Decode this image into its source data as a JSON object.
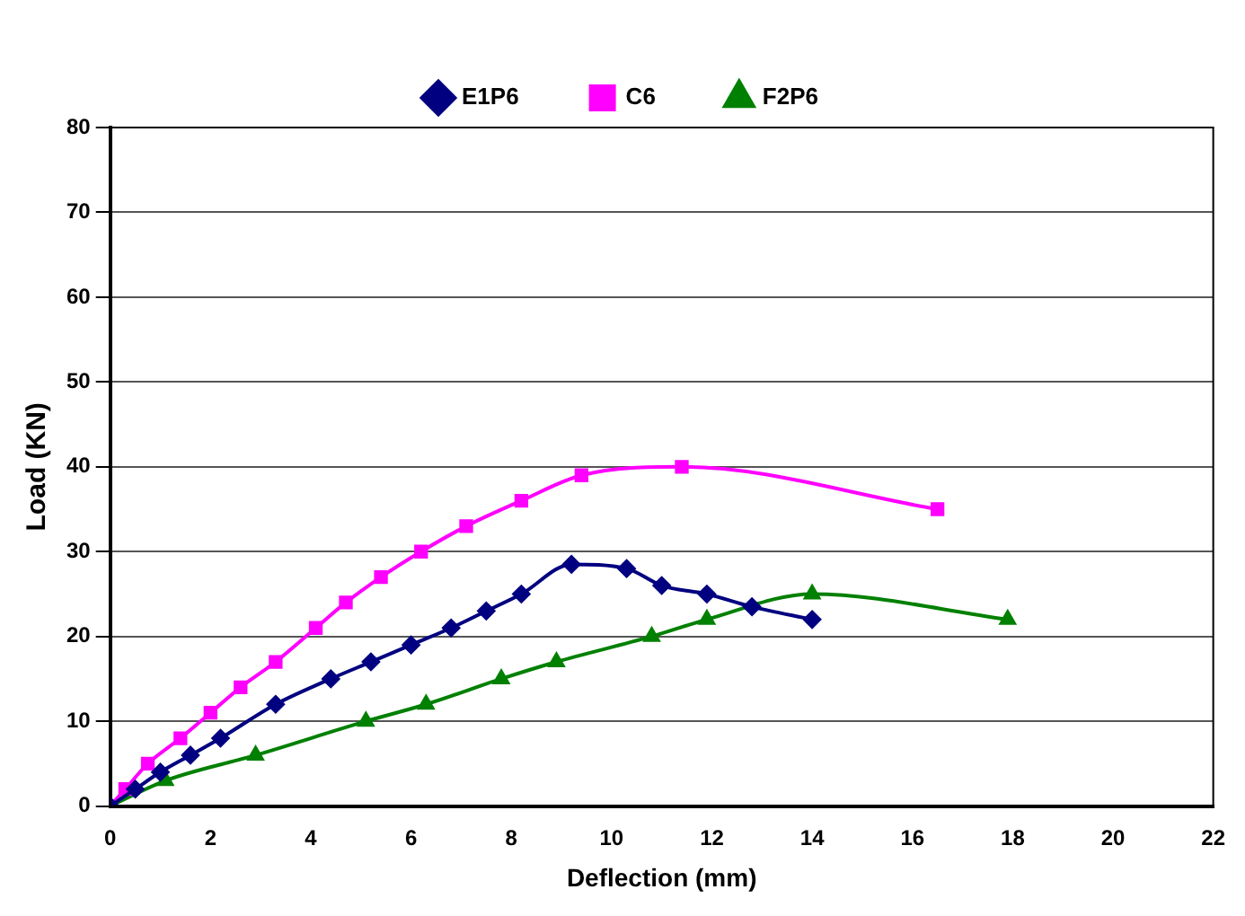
{
  "chart_data": {
    "type": "line",
    "xlabel": "Deflection (mm)",
    "ylabel": "Load (KN)",
    "xlim": [
      0,
      22
    ],
    "xticks": [
      0,
      2,
      4,
      6,
      8,
      10,
      12,
      14,
      16,
      18,
      20,
      22
    ],
    "ylim": [
      0,
      80
    ],
    "yticks": [
      0,
      10,
      20,
      30,
      40,
      50,
      60,
      70,
      80
    ],
    "grid": "y",
    "legend": "top",
    "series": [
      {
        "name": "E1P6",
        "color": "#000080",
        "marker": "diamond",
        "x": [
          0,
          0.5,
          1,
          1.6,
          2.2,
          3.3,
          4.4,
          5.2,
          6.0,
          6.8,
          7.5,
          8.2,
          9.2,
          10.3,
          11.0,
          11.9,
          12.8,
          14
        ],
        "values": [
          0,
          2,
          4,
          6,
          8,
          12,
          15,
          17,
          19,
          21,
          23,
          25,
          28.5,
          28,
          26,
          25,
          23.5,
          22
        ]
      },
      {
        "name": "C6",
        "color": "#ff00ff",
        "marker": "square",
        "x": [
          0,
          0.3,
          0.75,
          1.4,
          2,
          2.6,
          3.3,
          4.1,
          4.7,
          5.4,
          6.2,
          7.1,
          8.2,
          9.4,
          11.4,
          16.5
        ],
        "values": [
          0,
          2,
          5,
          8,
          11,
          14,
          17,
          21,
          24,
          27,
          30,
          33,
          36,
          39,
          40,
          35
        ]
      },
      {
        "name": "F2P6",
        "color": "#008000",
        "marker": "triangle",
        "x": [
          0,
          1.1,
          2.9,
          5.1,
          6.3,
          7.8,
          8.9,
          10.8,
          11.9,
          14,
          17.9
        ],
        "values": [
          0,
          3,
          6,
          10,
          12,
          15,
          17,
          20,
          22,
          25,
          22
        ]
      }
    ]
  }
}
